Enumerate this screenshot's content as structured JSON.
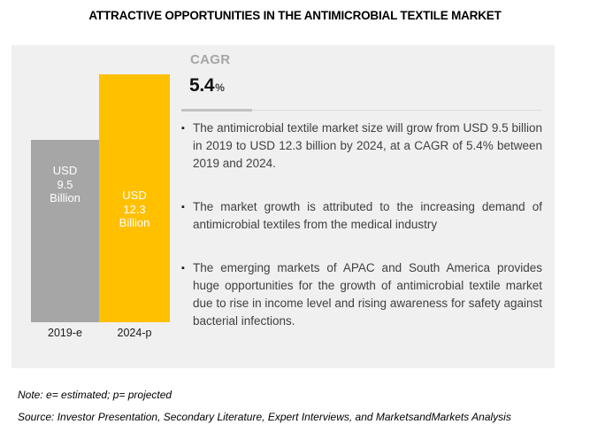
{
  "title": "ATTRACTIVE OPPORTUNITIES IN THE ANTIMICROBIAL TEXTILE MARKET",
  "chart_data": {
    "type": "bar",
    "title": "ATTRACTIVE OPPORTUNITIES IN THE ANTIMICROBIAL TEXTILE MARKET",
    "categories": [
      "2019-e",
      "2024-p"
    ],
    "values": [
      9.5,
      12.3
    ],
    "unit": "USD Billion",
    "ylim": [
      0,
      12.3
    ],
    "grid": false,
    "legend": "none",
    "bars": [
      {
        "category": "2019-e",
        "value": 9.5,
        "color": "#a6a6a6",
        "label_lines": [
          "USD",
          "9.5",
          "Billion"
        ]
      },
      {
        "category": "2024-p",
        "value": 12.3,
        "color": "#ffc000",
        "label_lines": [
          "USD",
          "12.3",
          "Billion"
        ]
      }
    ]
  },
  "cagr": {
    "label": "CAGR",
    "value": "5.4",
    "percent_sign": "%"
  },
  "bullets": {
    "marker": "▪",
    "items": [
      "The antimicrobial textile market size will grow from USD 9.5 billion in 2019 to USD 12.3 billion by 2024, at a CAGR of 5.4% between 2019 and 2024.",
      "The market growth is attributed to the increasing demand of antimicrobial textiles from the medical industry",
      "The emerging markets of APAC and South America provides huge opportunities for the growth of antimicrobial textile market due to rise in income level and rising awareness for safety against bacterial infections."
    ]
  },
  "footnotes": {
    "note": "Note: e= estimated; p= projected",
    "source": "Source: Investor Presentation, Secondary Literature, Expert Interviews, and MarketsandMarkets Analysis"
  },
  "colors": {
    "panel_background": "#f0f0f0",
    "bar_2019": "#a6a6a6",
    "bar_2024": "#ffc000",
    "bar_label_text": "#ffffff",
    "cagr_label": "#a6a6a6",
    "body_text": "#3f3f3f",
    "title_text": "#000000"
  }
}
